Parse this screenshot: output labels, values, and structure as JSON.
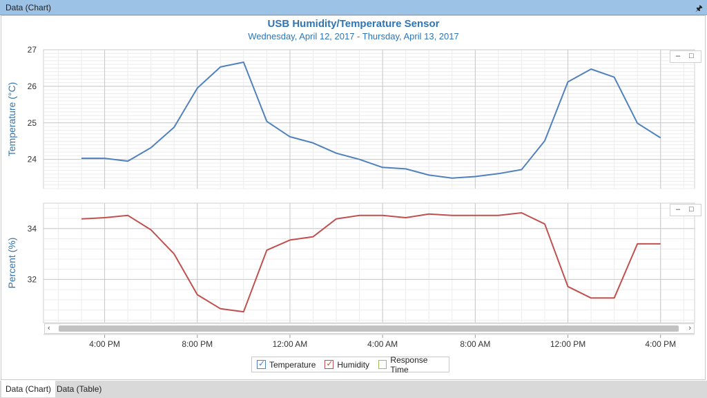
{
  "window": {
    "title": "Data (Chart)",
    "pin_icon": "pin-icon"
  },
  "tabs": [
    {
      "label": "Data (Chart)",
      "active": true
    },
    {
      "label": "Data (Table)",
      "active": false
    }
  ],
  "legend": {
    "items": [
      {
        "label": "Temperature",
        "color": "#4f81bd",
        "checked": true
      },
      {
        "label": "Humidity",
        "color": "#c0504d",
        "checked": true
      },
      {
        "label": "Response Time",
        "color": "#9bbb59",
        "checked": false
      }
    ]
  },
  "chart_data": {
    "type": "line",
    "title": "USB Humidity/Temperature Sensor",
    "subtitle": "Wednesday, April 12, 2017 - Thursday, April 13, 2017",
    "x_ticks": [
      "4:00 PM",
      "8:00 PM",
      "12:00 AM",
      "4:00 AM",
      "8:00 AM",
      "12:00 PM",
      "4:00 PM"
    ],
    "x": [
      "3:00 PM",
      "4:00 PM",
      "5:00 PM",
      "6:00 PM",
      "7:00 PM",
      "8:00 PM",
      "9:00 PM",
      "10:00 PM",
      "11:00 PM",
      "12:00 AM",
      "1:00 AM",
      "2:00 AM",
      "3:00 AM",
      "4:00 AM",
      "5:00 AM",
      "6:00 AM",
      "7:00 AM",
      "8:00 AM",
      "9:00 AM",
      "10:00 AM",
      "11:00 AM",
      "12:00 PM",
      "1:00 PM",
      "2:00 PM",
      "3:00 PM",
      "4:00 PM"
    ],
    "panels": [
      {
        "ylabel": "Temperature (°C)",
        "ylim": [
          23.2,
          27
        ],
        "y_ticks": [
          "24",
          "25",
          "26",
          "27"
        ],
        "series": [
          {
            "name": "Temperature",
            "color": "#4f81bd",
            "values": [
              24.03,
              24.03,
              23.95,
              24.32,
              24.88,
              25.95,
              26.53,
              26.66,
              25.04,
              24.62,
              24.45,
              24.17,
              24.0,
              23.78,
              23.74,
              23.57,
              23.49,
              23.53,
              23.61,
              23.72,
              24.51,
              26.12,
              26.47,
              26.25,
              24.99,
              24.59
            ]
          }
        ]
      },
      {
        "ylabel": "Percent (%)",
        "ylim": [
          30.3,
          35
        ],
        "y_ticks": [
          "32",
          "34"
        ],
        "series": [
          {
            "name": "Humidity",
            "color": "#c0504d",
            "values": [
              34.38,
              34.43,
              34.52,
              33.95,
              33.0,
              31.4,
              30.85,
              30.73,
              33.15,
              33.55,
              33.68,
              34.38,
              34.52,
              34.52,
              34.43,
              34.57,
              34.52,
              34.52,
              34.52,
              34.62,
              34.18,
              31.72,
              31.27,
              31.27,
              33.4,
              33.4
            ]
          }
        ]
      }
    ],
    "grid": true,
    "legend_position": "bottom"
  }
}
